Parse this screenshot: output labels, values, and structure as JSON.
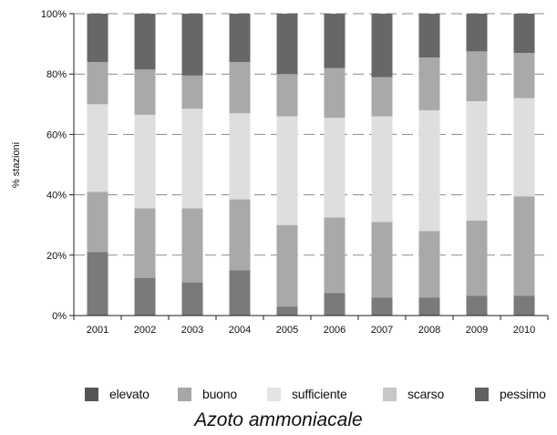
{
  "chart_data": {
    "type": "bar",
    "stacked": true,
    "title": "",
    "caption": "Azoto ammoniacale",
    "ylabel": "% stazioni",
    "xlabel": "",
    "ylim": [
      0,
      100
    ],
    "yticks": [
      "0%",
      "20%",
      "40%",
      "60%",
      "80%",
      "100%"
    ],
    "grid": "horizontal dashed",
    "legend_position": "bottom",
    "categories": [
      "2001",
      "2002",
      "2003",
      "2004",
      "2005",
      "2006",
      "2007",
      "2008",
      "2009",
      "2010"
    ],
    "series": [
      {
        "name": "pessimo",
        "color": "#7a7a7a",
        "values": [
          21,
          12.5,
          11,
          15,
          3,
          7.5,
          6,
          6,
          6.5,
          6.5
        ]
      },
      {
        "name": "scarso",
        "color": "#a9a9a9",
        "values": [
          20,
          23,
          24.5,
          23.5,
          27,
          25,
          25,
          22,
          25,
          33
        ]
      },
      {
        "name": "sufficiente",
        "color": "#dedede",
        "values": [
          29,
          31,
          33,
          28.5,
          36,
          33,
          35,
          40,
          39.5,
          32.5
        ]
      },
      {
        "name": "buono",
        "color": "#a9a9a9",
        "values": [
          14,
          15,
          11,
          17,
          14,
          16.5,
          13,
          17.5,
          16.5,
          15
        ]
      },
      {
        "name": "elevato",
        "color": "#676767",
        "values": [
          16,
          18.5,
          20.5,
          16,
          20,
          18,
          21,
          14.5,
          12.5,
          13
        ]
      }
    ]
  },
  "legend": [
    {
      "label": "elevato",
      "color": "#555555"
    },
    {
      "label": "buono",
      "color": "#a6a6a6"
    },
    {
      "label": "sufficiente",
      "color": "#e4e4e4"
    },
    {
      "label": "scarso",
      "color": "#c7c7c7"
    },
    {
      "label": "pessimo",
      "color": "#616161"
    }
  ]
}
